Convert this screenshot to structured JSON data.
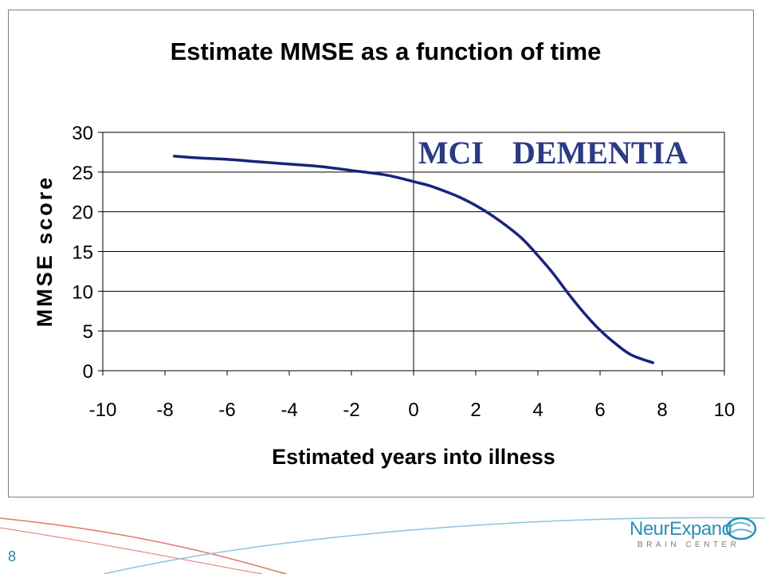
{
  "chart_data": {
    "type": "line",
    "title": "Estimate MMSE as a function of time",
    "xlabel": "Estimated years into illness",
    "ylabel": "MMSE score",
    "xlim": [
      -10,
      10
    ],
    "ylim": [
      0,
      30
    ],
    "x_ticks": [
      -10,
      -8,
      -6,
      -4,
      -2,
      0,
      2,
      4,
      6,
      8,
      10
    ],
    "y_ticks": [
      0,
      5,
      10,
      15,
      20,
      25,
      30
    ],
    "grid": "horizontal",
    "series": [
      {
        "color": "#1a237e",
        "x": [
          -7.7,
          -7,
          -6,
          -5,
          -4,
          -3,
          -2,
          -1,
          -0.5,
          0,
          0.5,
          1,
          1.5,
          2,
          2.5,
          3,
          3.5,
          4,
          4.5,
          5,
          5.5,
          6,
          6.5,
          7,
          7.7
        ],
        "y": [
          27,
          26.8,
          26.6,
          26.3,
          26,
          25.7,
          25.2,
          24.7,
          24.3,
          23.8,
          23.3,
          22.6,
          21.8,
          20.8,
          19.6,
          18.2,
          16.6,
          14.5,
          12.2,
          9.6,
          7.2,
          5.1,
          3.4,
          2,
          1
        ]
      }
    ],
    "annotations": [
      {
        "text": "MCI",
        "x": 1.2,
        "y": 27.5
      },
      {
        "text": "DEMENTIA",
        "x": 6.0,
        "y": 27.5
      }
    ],
    "reference_line": {
      "x": 0
    }
  },
  "slide": {
    "number": "8"
  },
  "logo": {
    "name": "NeurExpand",
    "tagline": "BRAIN CENTER",
    "colors": {
      "primary": "#2a8fb8",
      "secondary": "#7a7a7a"
    }
  },
  "colors": {
    "line": "#1a237e",
    "annotation": "#2b3a84",
    "grid": "#000000",
    "footer_swoosh_red": "#e0786e",
    "footer_swoosh_blue": "#8fc3dd"
  }
}
